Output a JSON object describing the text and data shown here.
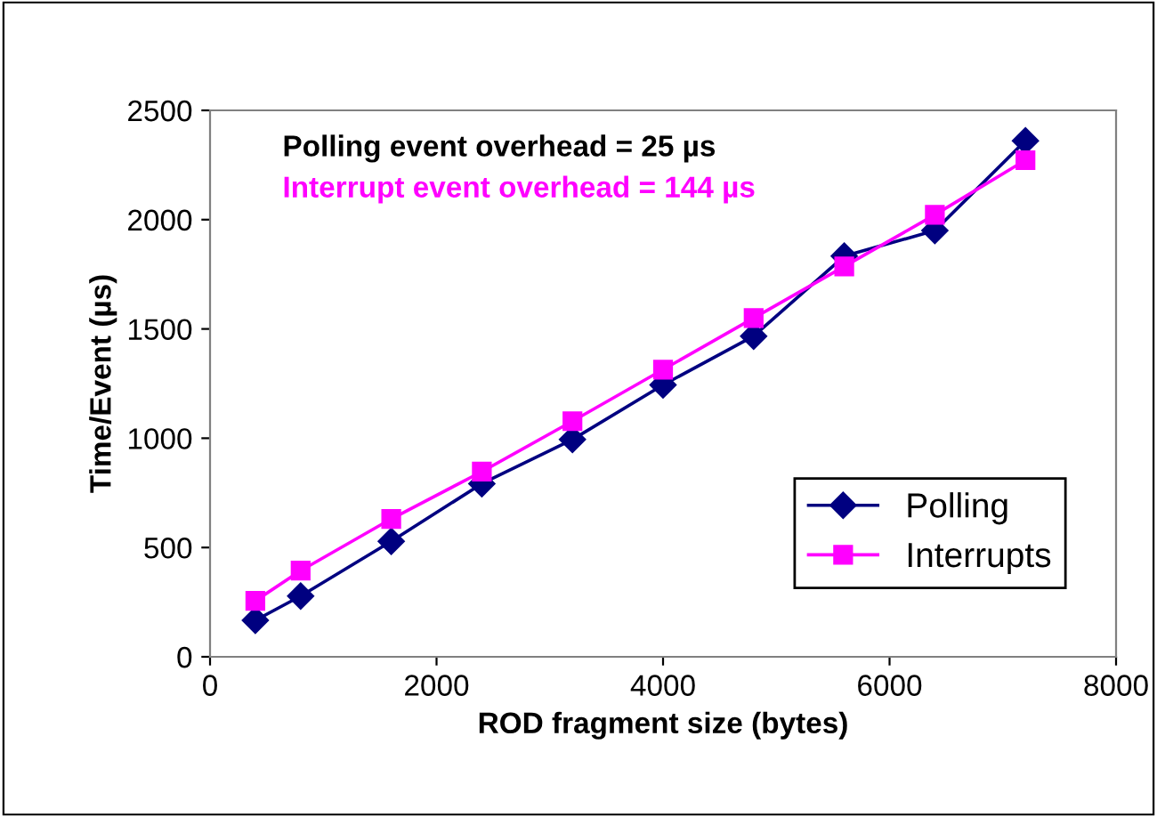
{
  "chart_data": {
    "type": "line",
    "xlabel": "ROD fragment size (bytes)",
    "ylabel": "Time/Event (µs)",
    "annotations": [
      "Polling event overhead = 25 µs",
      "Interrupt event overhead = 144 µs"
    ],
    "x": [
      400,
      800,
      1600,
      2400,
      3200,
      4000,
      4800,
      5600,
      6400,
      7200
    ],
    "series": [
      {
        "name": "Polling",
        "color": "#000080",
        "marker": "diamond",
        "values": [
          167,
          278,
          528,
          792,
          994,
          1244,
          1467,
          1833,
          1950,
          2361
        ]
      },
      {
        "name": "Interrupts",
        "color": "#ff00ff",
        "marker": "square",
        "values": [
          256,
          394,
          631,
          847,
          1078,
          1314,
          1550,
          1786,
          2022,
          2272
        ]
      }
    ],
    "xlim": [
      0,
      8000
    ],
    "xticks": [
      0,
      2000,
      4000,
      6000,
      8000
    ],
    "ylim": [
      0,
      2500
    ],
    "yticks": [
      0,
      500,
      1000,
      1500,
      2000,
      2500
    ],
    "grid": false,
    "legend": "bottom right",
    "line_style": "solid"
  }
}
